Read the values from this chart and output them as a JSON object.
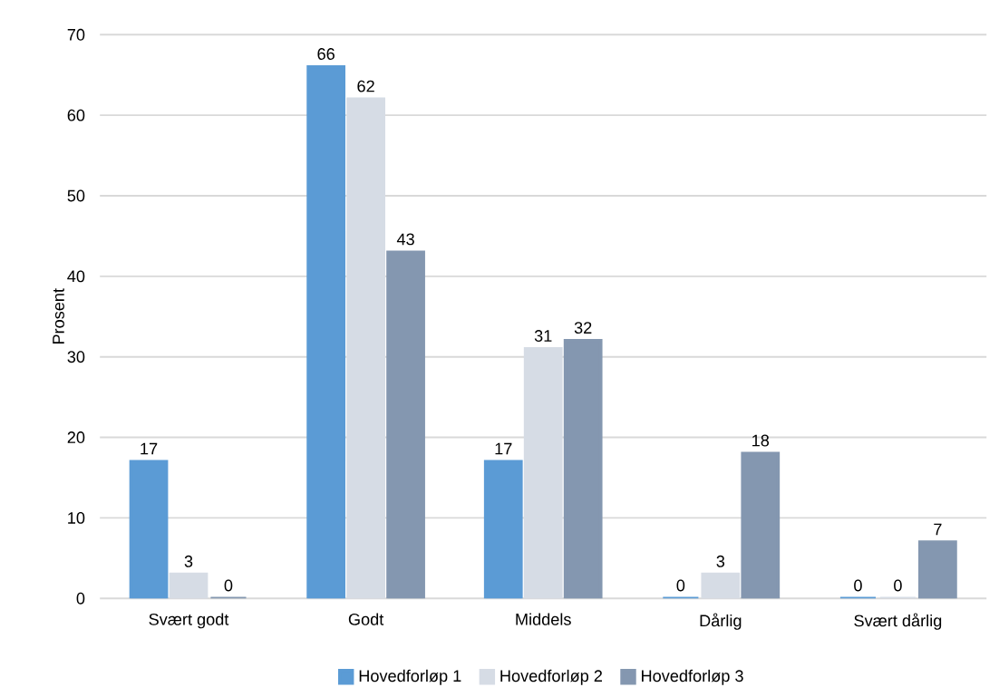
{
  "chart_data": {
    "type": "bar",
    "ylabel": "Prosent",
    "categories": [
      "Svært godt",
      "Godt",
      "Middels",
      "Dårlig",
      "Svært dårlig"
    ],
    "series": [
      {
        "name": "Hovedforløp 1",
        "color": "#5b9bd5",
        "values": [
          17,
          66,
          17,
          0,
          0
        ]
      },
      {
        "name": "Hovedforløp 2",
        "color": "#d6dce5",
        "values": [
          3,
          62,
          31,
          3,
          0
        ]
      },
      {
        "name": "Hovedforløp 3",
        "color": "#8497b0",
        "values": [
          0,
          43,
          32,
          18,
          7
        ]
      }
    ],
    "ylim": [
      0,
      70
    ],
    "yticks": [
      0,
      10,
      20,
      30,
      40,
      50,
      60,
      70
    ],
    "grid": "y",
    "legend": "bottom",
    "data_labels": true
  }
}
